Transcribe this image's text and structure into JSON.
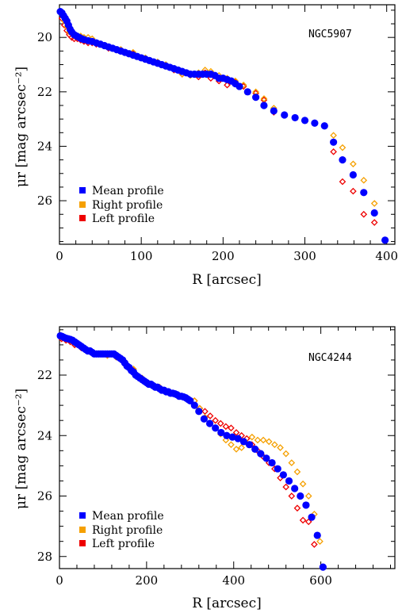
{
  "colors": {
    "mean": "#0000ff",
    "right": "#f5a000",
    "left": "#ee0000"
  },
  "chart_data": [
    {
      "type": "scatter",
      "label": "NGC5907",
      "xlabel": "R [arcsec]",
      "ylabel": "μr [mag arcsec⁻²]",
      "xlim": [
        0,
        410
      ],
      "ylim": [
        27.6,
        18.8
      ],
      "y_inverted": true,
      "xticks": [
        0,
        100,
        200,
        300,
        400
      ],
      "yticks": [
        20,
        22,
        24,
        26
      ],
      "legend": [
        "Mean profile",
        "Right profile",
        "Left profile"
      ],
      "legend_position": "bottom-left",
      "series": [
        {
          "name": "Mean profile",
          "marker": "filled-circle",
          "x": [
            1,
            3,
            5,
            7,
            9,
            11,
            13,
            15,
            18,
            21,
            24,
            27,
            30,
            35,
            40,
            45,
            50,
            55,
            60,
            65,
            70,
            75,
            80,
            85,
            90,
            95,
            100,
            105,
            110,
            115,
            120,
            125,
            130,
            135,
            140,
            145,
            150,
            155,
            160,
            165,
            170,
            175,
            180,
            185,
            190,
            195,
            200,
            205,
            210,
            215,
            220,
            230,
            240,
            250,
            262,
            275,
            288,
            300,
            312,
            324,
            335,
            346,
            359,
            372,
            385,
            398
          ],
          "y": [
            19.05,
            19.1,
            19.2,
            19.3,
            19.4,
            19.55,
            19.7,
            19.8,
            19.9,
            19.95,
            20.0,
            20.05,
            20.08,
            20.12,
            20.15,
            20.2,
            20.25,
            20.3,
            20.35,
            20.4,
            20.45,
            20.5,
            20.55,
            20.6,
            20.65,
            20.7,
            20.75,
            20.8,
            20.85,
            20.9,
            20.95,
            21.0,
            21.05,
            21.1,
            21.15,
            21.2,
            21.25,
            21.3,
            21.35,
            21.35,
            21.35,
            21.35,
            21.35,
            21.35,
            21.4,
            21.5,
            21.5,
            21.55,
            21.6,
            21.7,
            21.8,
            22.0,
            22.2,
            22.5,
            22.7,
            22.85,
            22.95,
            23.05,
            23.15,
            23.25,
            23.85,
            24.5,
            25.05,
            25.7,
            26.45,
            27.45
          ]
        },
        {
          "name": "Right profile",
          "marker": "open-diamond",
          "x": [
            3,
            6,
            9,
            12,
            15,
            18,
            22,
            26,
            30,
            35,
            40,
            45,
            60,
            75,
            90,
            105,
            120,
            130,
            140,
            150,
            160,
            170,
            178,
            185,
            195,
            205,
            215,
            225,
            240,
            250,
            262,
            275,
            335,
            346,
            359,
            372,
            385
          ],
          "y": [
            19.15,
            19.4,
            19.6,
            19.8,
            19.85,
            19.9,
            19.95,
            19.95,
            20.0,
            20.0,
            20.05,
            20.2,
            20.35,
            20.45,
            20.55,
            20.75,
            20.9,
            21.0,
            21.15,
            21.35,
            21.4,
            21.3,
            21.2,
            21.25,
            21.4,
            21.5,
            21.6,
            21.75,
            22.0,
            22.25,
            22.6,
            22.85,
            23.6,
            24.05,
            24.65,
            25.25,
            26.1
          ]
        },
        {
          "name": "Left profile",
          "marker": "open-diamond",
          "x": [
            3,
            6,
            9,
            12,
            15,
            18,
            22,
            26,
            30,
            35,
            40,
            45,
            60,
            75,
            90,
            105,
            120,
            130,
            140,
            150,
            160,
            170,
            178,
            185,
            195,
            205,
            215,
            225,
            240,
            250,
            262,
            335,
            346,
            359,
            372,
            385
          ],
          "y": [
            19.3,
            19.55,
            19.75,
            19.9,
            20.0,
            20.05,
            20.05,
            20.1,
            20.15,
            20.2,
            20.2,
            20.25,
            20.4,
            20.45,
            20.6,
            20.8,
            20.95,
            21.05,
            21.2,
            21.35,
            21.35,
            21.45,
            21.3,
            21.5,
            21.6,
            21.75,
            21.65,
            21.8,
            22.05,
            22.3,
            22.75,
            24.2,
            25.3,
            25.65,
            26.5,
            26.8
          ]
        }
      ]
    },
    {
      "type": "scatter",
      "label": "NGC4244",
      "xlabel": "R [arcsec]",
      "ylabel": "μr [mag arcsec⁻²]",
      "xlim": [
        0,
        770
      ],
      "ylim": [
        28.4,
        20.4
      ],
      "y_inverted": true,
      "xticks": [
        0,
        200,
        400,
        600
      ],
      "yticks": [
        22,
        24,
        26,
        28
      ],
      "legend": [
        "Mean profile",
        "Right profile",
        "Left profile"
      ],
      "legend_position": "bottom-left",
      "series": [
        {
          "name": "Mean profile",
          "marker": "filled-circle",
          "x": [
            2,
            6,
            10,
            15,
            20,
            25,
            30,
            35,
            40,
            45,
            50,
            55,
            60,
            65,
            70,
            75,
            80,
            85,
            90,
            95,
            100,
            105,
            110,
            115,
            120,
            125,
            130,
            135,
            140,
            145,
            150,
            155,
            160,
            165,
            170,
            175,
            180,
            185,
            190,
            195,
            200,
            205,
            210,
            215,
            220,
            225,
            230,
            235,
            240,
            245,
            250,
            255,
            260,
            265,
            270,
            275,
            280,
            285,
            290,
            295,
            300,
            310,
            320,
            332,
            345,
            358,
            371,
            384,
            397,
            410,
            423,
            436,
            449,
            462,
            475,
            488,
            501,
            514,
            527,
            540,
            553,
            566,
            579,
            592,
            605
          ],
          "y": [
            20.7,
            20.72,
            20.75,
            20.78,
            20.8,
            20.82,
            20.85,
            20.9,
            20.95,
            21.0,
            21.05,
            21.1,
            21.15,
            21.2,
            21.2,
            21.25,
            21.3,
            21.3,
            21.3,
            21.3,
            21.3,
            21.3,
            21.3,
            21.3,
            21.3,
            21.3,
            21.35,
            21.4,
            21.45,
            21.5,
            21.6,
            21.7,
            21.75,
            21.85,
            21.9,
            22.0,
            22.05,
            22.1,
            22.15,
            22.2,
            22.25,
            22.3,
            22.3,
            22.35,
            22.4,
            22.4,
            22.45,
            22.5,
            22.5,
            22.55,
            22.55,
            22.6,
            22.6,
            22.62,
            22.65,
            22.7,
            22.7,
            22.72,
            22.75,
            22.8,
            22.85,
            23.0,
            23.2,
            23.45,
            23.6,
            23.75,
            23.9,
            24.0,
            24.05,
            24.1,
            24.2,
            24.3,
            24.45,
            24.6,
            24.75,
            24.9,
            25.1,
            25.3,
            25.5,
            25.75,
            26.0,
            26.3,
            26.7,
            27.3,
            28.35
          ]
        },
        {
          "name": "Right profile",
          "marker": "open-diamond",
          "x": [
            5,
            15,
            25,
            35,
            50,
            70,
            90,
            110,
            130,
            150,
            170,
            190,
            210,
            230,
            250,
            270,
            290,
            310,
            322,
            334,
            346,
            358,
            370,
            382,
            394,
            406,
            418,
            430,
            442,
            455,
            468,
            481,
            494,
            507,
            520,
            533,
            546,
            559,
            572,
            585,
            598
          ],
          "y": [
            20.75,
            20.8,
            20.85,
            20.95,
            21.05,
            21.2,
            21.3,
            21.35,
            21.4,
            21.55,
            21.8,
            22.1,
            22.3,
            22.4,
            22.55,
            22.65,
            22.75,
            22.85,
            23.1,
            23.4,
            23.6,
            23.75,
            23.95,
            24.15,
            24.3,
            24.45,
            24.4,
            24.25,
            24.05,
            24.15,
            24.15,
            24.2,
            24.3,
            24.4,
            24.6,
            24.9,
            25.2,
            25.6,
            26.0,
            26.6,
            27.5
          ]
        },
        {
          "name": "Left profile",
          "marker": "open-diamond",
          "x": [
            5,
            15,
            25,
            35,
            50,
            70,
            90,
            110,
            130,
            150,
            170,
            190,
            210,
            230,
            250,
            270,
            290,
            310,
            322,
            334,
            346,
            358,
            370,
            382,
            394,
            406,
            418,
            430,
            442,
            455,
            468,
            481,
            494,
            507,
            520,
            533,
            546,
            559,
            572,
            585
          ],
          "y": [
            20.8,
            20.85,
            20.9,
            21.0,
            21.1,
            21.2,
            21.3,
            21.35,
            21.4,
            21.6,
            21.85,
            22.15,
            22.3,
            22.45,
            22.55,
            22.65,
            22.75,
            22.85,
            23.1,
            23.2,
            23.35,
            23.5,
            23.6,
            23.7,
            23.75,
            23.9,
            24.0,
            24.1,
            24.3,
            24.5,
            24.7,
            24.9,
            25.1,
            25.4,
            25.7,
            26.0,
            26.4,
            26.8,
            26.85,
            27.6
          ]
        }
      ]
    }
  ]
}
